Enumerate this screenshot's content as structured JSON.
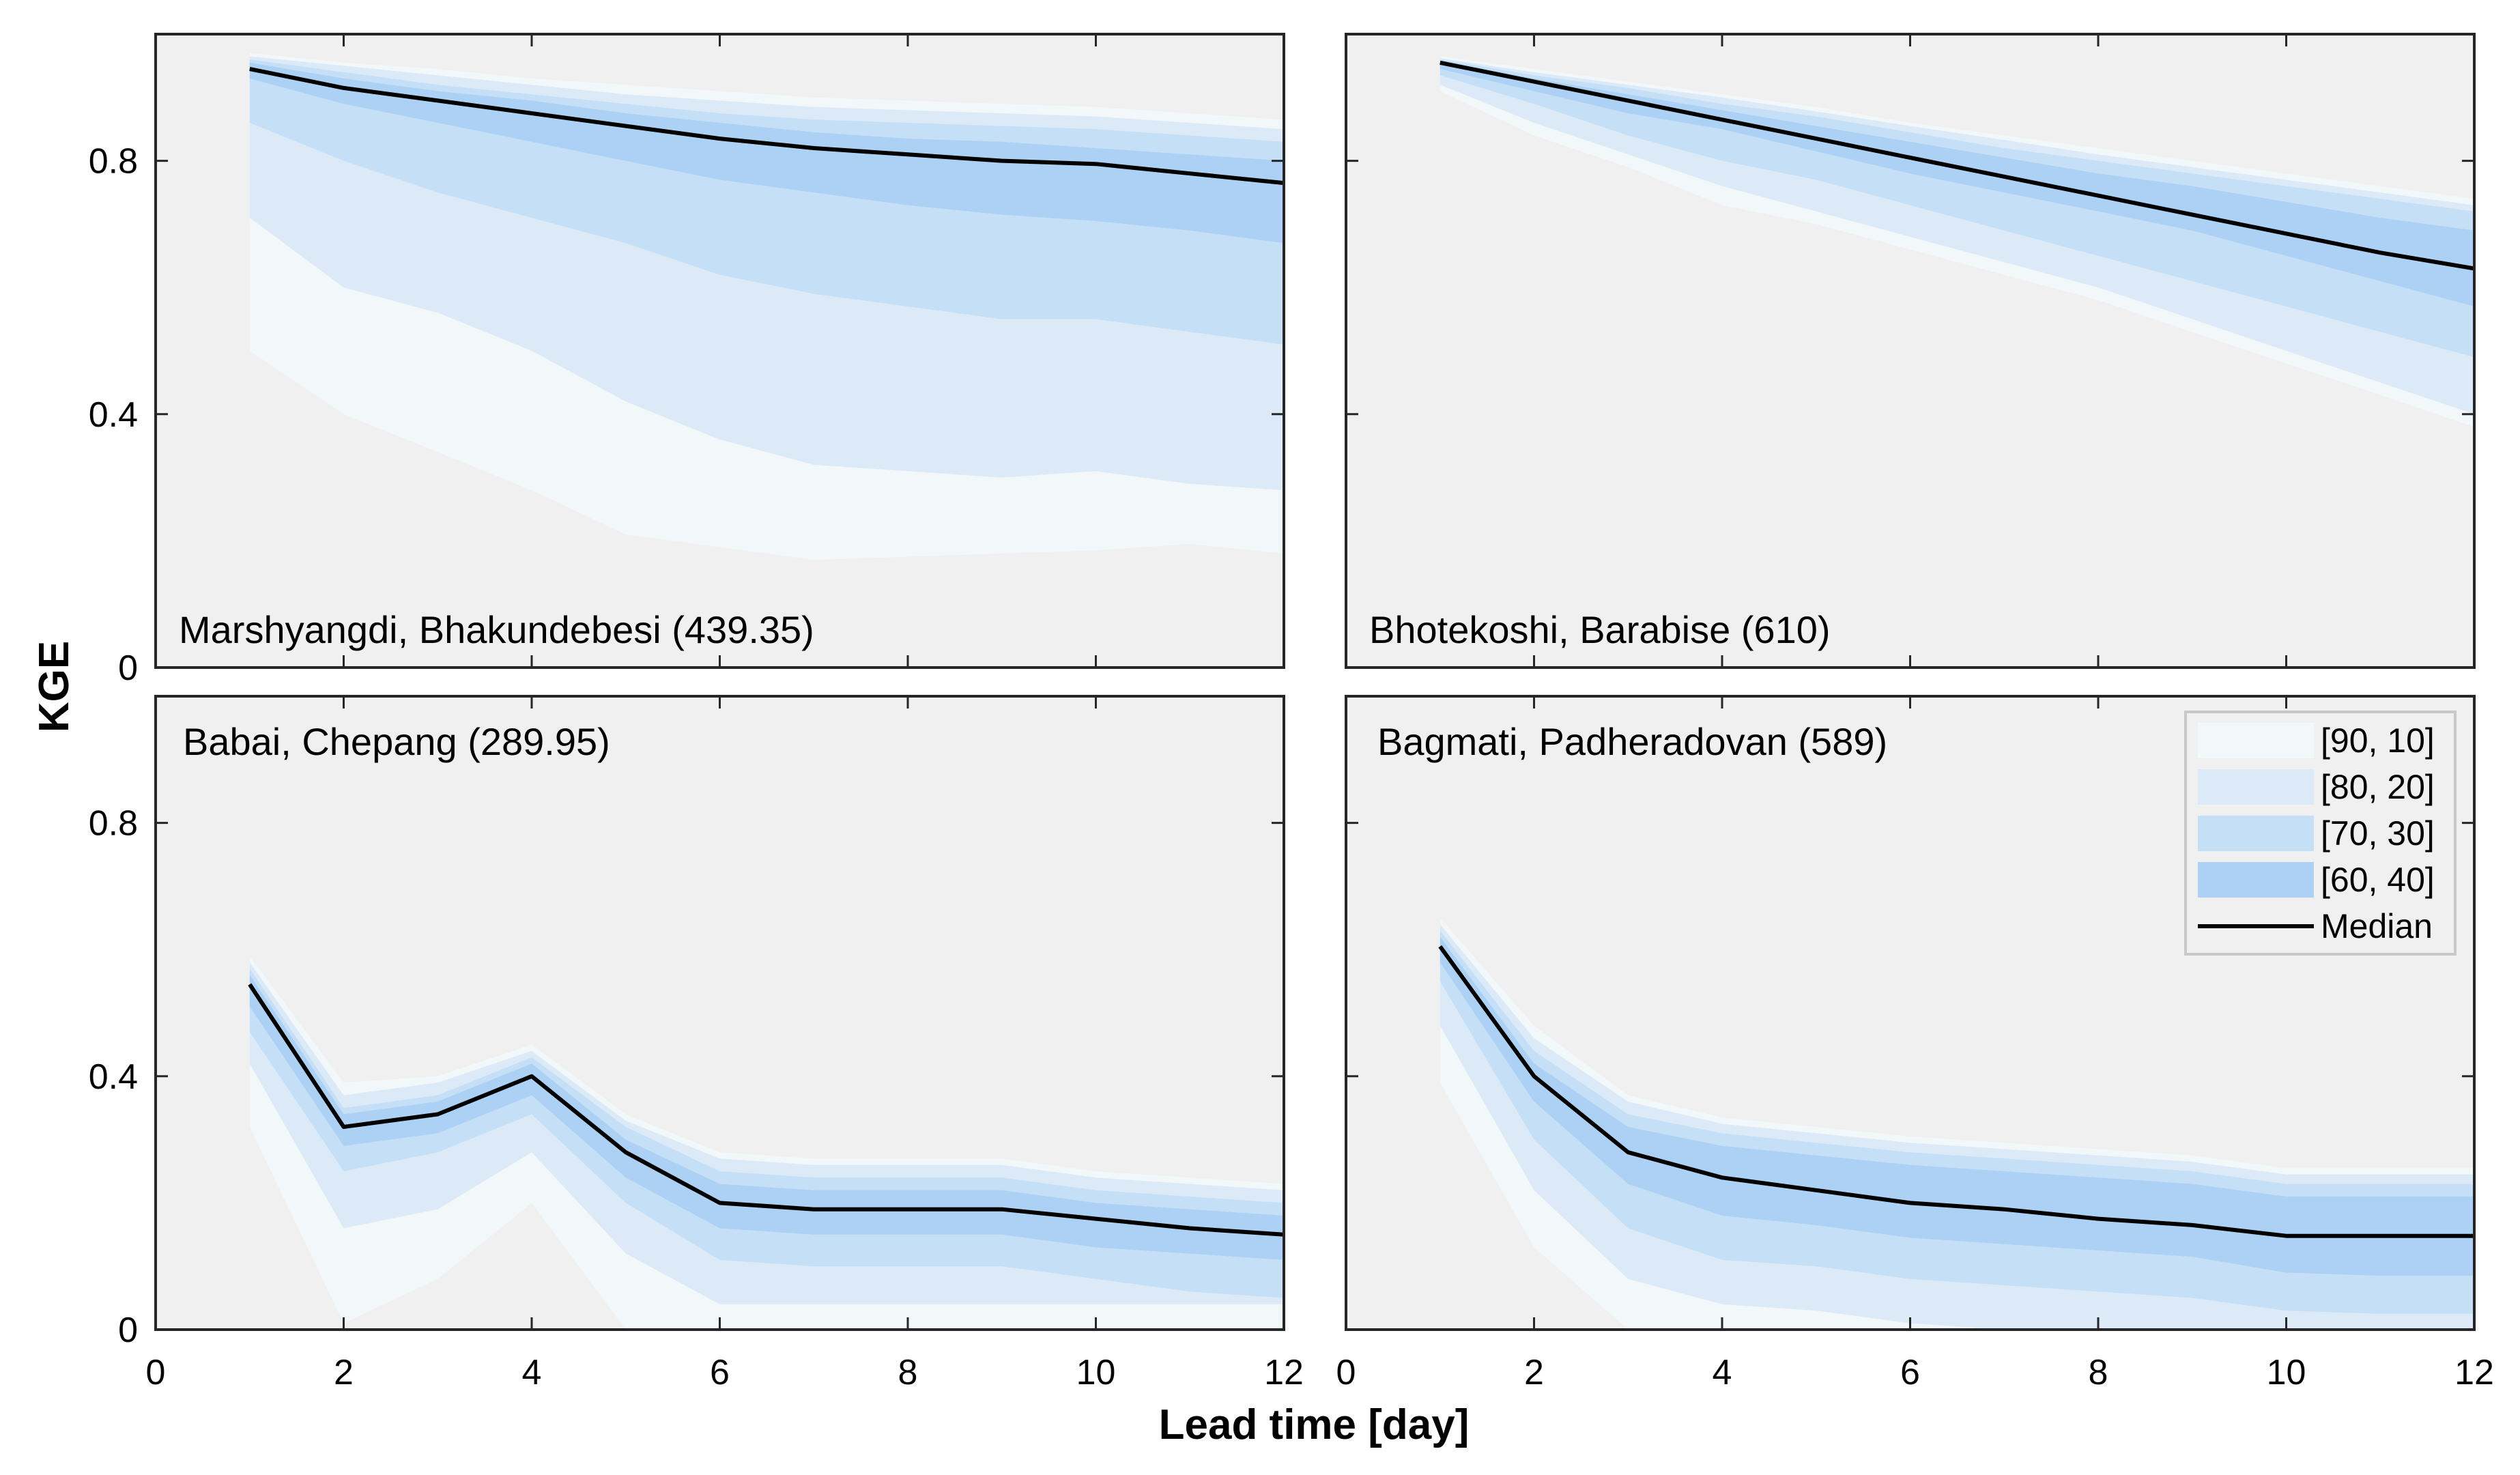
{
  "figure": {
    "ylabel": "KGE",
    "xlabel": "Lead time [day]",
    "background": "#ffffff",
    "panel_background": "#f0f0f0"
  },
  "legend": {
    "placement": "top-right of bottom-right panel",
    "entries": [
      {
        "key": "band0",
        "label": "[90, 10]",
        "color": "#f2f7fa"
      },
      {
        "key": "band1",
        "label": "[80, 20]",
        "color": "#dceaf8"
      },
      {
        "key": "band2",
        "label": "[70, 30]",
        "color": "#c5dff6"
      },
      {
        "key": "band3",
        "label": "[60, 40]",
        "color": "#acd1f4"
      },
      {
        "key": "median",
        "label": "Median",
        "color": "#000000"
      }
    ]
  },
  "chart_data": [
    {
      "type": "area",
      "panel": "top-left",
      "title": "Marshyangdi, Bhakundebesi (439.35)",
      "xlabel": "Lead time [day]",
      "ylabel": "KGE",
      "xlim": [
        0,
        12
      ],
      "ylim": [
        0,
        1
      ],
      "xticks": [
        0,
        2,
        4,
        6,
        8,
        10,
        12
      ],
      "yticks": [
        0,
        0.4,
        0.8
      ],
      "x": [
        1,
        2,
        3,
        4,
        5,
        6,
        7,
        8,
        9,
        10,
        11,
        12
      ],
      "bands": [
        {
          "name": "[90, 10]",
          "upper": [
            0.97,
            0.955,
            0.945,
            0.93,
            0.92,
            0.91,
            0.9,
            0.895,
            0.89,
            0.885,
            0.875,
            0.865
          ],
          "lower": [
            0.5,
            0.4,
            0.34,
            0.28,
            0.21,
            0.19,
            0.17,
            0.175,
            0.18,
            0.185,
            0.195,
            0.18
          ]
        },
        {
          "name": "[80, 20]",
          "upper": [
            0.965,
            0.95,
            0.935,
            0.92,
            0.905,
            0.895,
            0.885,
            0.88,
            0.875,
            0.87,
            0.86,
            0.85
          ],
          "lower": [
            0.71,
            0.6,
            0.56,
            0.5,
            0.42,
            0.36,
            0.32,
            0.31,
            0.3,
            0.31,
            0.29,
            0.28
          ]
        },
        {
          "name": "[70, 30]",
          "upper": [
            0.96,
            0.94,
            0.92,
            0.905,
            0.89,
            0.875,
            0.865,
            0.86,
            0.855,
            0.85,
            0.84,
            0.83
          ],
          "lower": [
            0.86,
            0.8,
            0.75,
            0.71,
            0.67,
            0.62,
            0.59,
            0.57,
            0.55,
            0.55,
            0.53,
            0.51
          ]
        },
        {
          "name": "[60, 40]",
          "upper": [
            0.955,
            0.93,
            0.91,
            0.895,
            0.875,
            0.86,
            0.845,
            0.835,
            0.83,
            0.82,
            0.81,
            0.8
          ],
          "lower": [
            0.93,
            0.89,
            0.86,
            0.83,
            0.8,
            0.77,
            0.75,
            0.73,
            0.715,
            0.705,
            0.69,
            0.67
          ]
        }
      ],
      "median": [
        0.945,
        0.915,
        0.895,
        0.875,
        0.855,
        0.835,
        0.82,
        0.81,
        0.8,
        0.795,
        0.78,
        0.765
      ]
    },
    {
      "type": "area",
      "panel": "top-right",
      "title": "Bhotekoshi, Barabise (610)",
      "xlabel": "Lead time [day]",
      "ylabel": "KGE",
      "xlim": [
        0,
        12
      ],
      "ylim": [
        0,
        1
      ],
      "xticks": [
        0,
        2,
        4,
        6,
        8,
        10,
        12
      ],
      "yticks": [
        0,
        0.4,
        0.8
      ],
      "x": [
        1,
        2,
        3,
        4,
        5,
        6,
        7,
        8,
        9,
        10,
        11,
        12
      ],
      "bands": [
        {
          "name": "[90, 10]",
          "upper": [
            0.965,
            0.945,
            0.925,
            0.905,
            0.885,
            0.86,
            0.84,
            0.82,
            0.8,
            0.78,
            0.76,
            0.74
          ],
          "lower": [
            0.91,
            0.84,
            0.79,
            0.73,
            0.7,
            0.66,
            0.62,
            0.58,
            0.53,
            0.48,
            0.43,
            0.38
          ]
        },
        {
          "name": "[80, 20]",
          "upper": [
            0.962,
            0.94,
            0.92,
            0.9,
            0.878,
            0.855,
            0.833,
            0.81,
            0.79,
            0.77,
            0.75,
            0.73
          ],
          "lower": [
            0.92,
            0.86,
            0.81,
            0.76,
            0.72,
            0.68,
            0.64,
            0.6,
            0.55,
            0.5,
            0.45,
            0.4
          ]
        },
        {
          "name": "[70, 30]",
          "upper": [
            0.96,
            0.935,
            0.915,
            0.89,
            0.87,
            0.845,
            0.82,
            0.8,
            0.78,
            0.76,
            0.74,
            0.72
          ],
          "lower": [
            0.935,
            0.89,
            0.84,
            0.8,
            0.77,
            0.73,
            0.69,
            0.65,
            0.61,
            0.57,
            0.53,
            0.49
          ]
        },
        {
          "name": "[60, 40]",
          "upper": [
            0.958,
            0.93,
            0.905,
            0.88,
            0.855,
            0.83,
            0.805,
            0.78,
            0.76,
            0.735,
            0.71,
            0.69
          ],
          "lower": [
            0.945,
            0.91,
            0.875,
            0.85,
            0.815,
            0.78,
            0.75,
            0.72,
            0.69,
            0.65,
            0.61,
            0.57
          ]
        }
      ],
      "median": [
        0.955,
        0.925,
        0.895,
        0.865,
        0.835,
        0.805,
        0.775,
        0.745,
        0.715,
        0.685,
        0.655,
        0.63
      ]
    },
    {
      "type": "area",
      "panel": "bottom-left",
      "title": "Babai, Chepang (289.95)",
      "xlabel": "Lead time [day]",
      "ylabel": "KGE",
      "xlim": [
        0,
        12
      ],
      "ylim": [
        0,
        1
      ],
      "xticks": [
        0,
        2,
        4,
        6,
        8,
        10,
        12
      ],
      "yticks": [
        0,
        0.4,
        0.8
      ],
      "x": [
        1,
        2,
        3,
        4,
        5,
        6,
        7,
        8,
        9,
        10,
        11,
        12
      ],
      "bands": [
        {
          "name": "[90, 10]",
          "upper": [
            0.59,
            0.39,
            0.4,
            0.45,
            0.34,
            0.28,
            0.27,
            0.27,
            0.27,
            0.25,
            0.24,
            0.23
          ],
          "lower": [
            0.32,
            0.01,
            0.08,
            0.2,
            0.0,
            0.0,
            0.0,
            0.0,
            0.0,
            0.0,
            0.0,
            0.0
          ]
        },
        {
          "name": "[80, 20]",
          "upper": [
            0.58,
            0.37,
            0.39,
            0.44,
            0.33,
            0.27,
            0.26,
            0.26,
            0.26,
            0.24,
            0.23,
            0.22
          ],
          "lower": [
            0.42,
            0.16,
            0.19,
            0.28,
            0.12,
            0.04,
            0.04,
            0.04,
            0.04,
            0.04,
            0.04,
            0.04
          ]
        },
        {
          "name": "[70, 30]",
          "upper": [
            0.57,
            0.35,
            0.37,
            0.43,
            0.32,
            0.25,
            0.24,
            0.24,
            0.24,
            0.22,
            0.21,
            0.2
          ],
          "lower": [
            0.47,
            0.25,
            0.28,
            0.34,
            0.2,
            0.11,
            0.1,
            0.1,
            0.1,
            0.08,
            0.06,
            0.05
          ]
        },
        {
          "name": "[60, 40]",
          "upper": [
            0.56,
            0.34,
            0.36,
            0.42,
            0.3,
            0.23,
            0.22,
            0.22,
            0.22,
            0.2,
            0.19,
            0.18
          ],
          "lower": [
            0.51,
            0.29,
            0.31,
            0.37,
            0.24,
            0.16,
            0.15,
            0.15,
            0.15,
            0.13,
            0.12,
            0.11
          ]
        }
      ],
      "median": [
        0.545,
        0.32,
        0.34,
        0.4,
        0.28,
        0.2,
        0.19,
        0.19,
        0.19,
        0.175,
        0.16,
        0.15
      ]
    },
    {
      "type": "area",
      "panel": "bottom-right",
      "title": "Bagmati, Padheradovan (589)",
      "xlabel": "Lead time [day]",
      "ylabel": "KGE",
      "xlim": [
        0,
        12
      ],
      "ylim": [
        0,
        1
      ],
      "xticks": [
        0,
        2,
        4,
        6,
        8,
        10,
        12
      ],
      "yticks": [
        0,
        0.4,
        0.8
      ],
      "x": [
        1,
        2,
        3,
        4,
        5,
        6,
        7,
        8,
        9,
        10,
        11,
        12
      ],
      "bands": [
        {
          "name": "[90, 10]",
          "upper": [
            0.65,
            0.48,
            0.37,
            0.335,
            0.32,
            0.305,
            0.295,
            0.285,
            0.275,
            0.255,
            0.255,
            0.255
          ],
          "lower": [
            0.39,
            0.13,
            0.0,
            0.0,
            0.0,
            0.0,
            0.0,
            0.0,
            0.0,
            0.0,
            0.0,
            0.0
          ]
        },
        {
          "name": "[80, 20]",
          "upper": [
            0.64,
            0.46,
            0.36,
            0.325,
            0.31,
            0.295,
            0.285,
            0.275,
            0.265,
            0.245,
            0.245,
            0.245
          ],
          "lower": [
            0.48,
            0.22,
            0.08,
            0.04,
            0.03,
            0.01,
            0.0,
            0.0,
            0.0,
            0.0,
            0.0,
            0.0
          ]
        },
        {
          "name": "[70, 30]",
          "upper": [
            0.63,
            0.44,
            0.34,
            0.31,
            0.295,
            0.28,
            0.27,
            0.26,
            0.25,
            0.23,
            0.23,
            0.23
          ],
          "lower": [
            0.55,
            0.3,
            0.16,
            0.11,
            0.1,
            0.08,
            0.07,
            0.06,
            0.05,
            0.03,
            0.025,
            0.025
          ]
        },
        {
          "name": "[60, 40]",
          "upper": [
            0.62,
            0.42,
            0.32,
            0.29,
            0.275,
            0.26,
            0.25,
            0.24,
            0.23,
            0.21,
            0.21,
            0.21
          ],
          "lower": [
            0.58,
            0.36,
            0.23,
            0.18,
            0.165,
            0.145,
            0.135,
            0.125,
            0.115,
            0.09,
            0.085,
            0.085
          ]
        }
      ],
      "median": [
        0.605,
        0.4,
        0.28,
        0.24,
        0.22,
        0.2,
        0.19,
        0.175,
        0.165,
        0.148,
        0.148,
        0.148
      ]
    }
  ]
}
